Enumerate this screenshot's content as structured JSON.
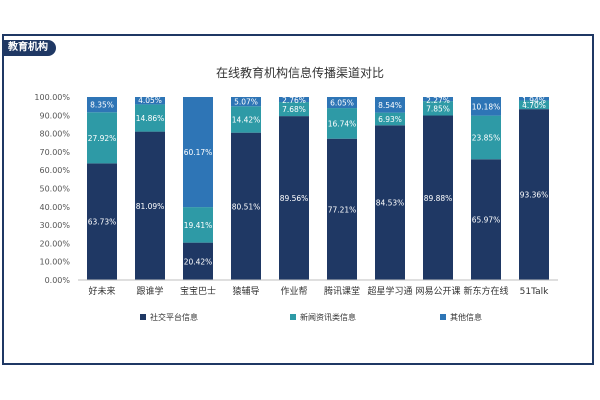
{
  "header": {
    "tag": "教育机构"
  },
  "chart_data": {
    "type": "bar",
    "stacked": true,
    "title": "在线教育机构信息传播渠道对比",
    "categories": [
      "好未来",
      "跟谁学",
      "宝宝巴士",
      "猿辅导",
      "作业帮",
      "腾讯课堂",
      "超星学习通",
      "网易公开课",
      "新东方在线",
      "51Talk"
    ],
    "series": [
      {
        "name": "社交平台信息",
        "color": "#1f3864",
        "values": [
          63.73,
          81.09,
          20.42,
          80.51,
          89.56,
          77.21,
          84.53,
          89.88,
          65.97,
          93.36
        ],
        "labels": [
          "63.73%",
          "81.09%",
          "20.42%",
          "80.51%",
          "89.56%",
          "77.21%",
          "84.53%",
          "89.88%",
          "65.97%",
          "93.36%"
        ]
      },
      {
        "name": "新闻资讯类信息",
        "color": "#2e9aa6",
        "values": [
          27.92,
          14.86,
          19.41,
          14.42,
          7.68,
          16.74,
          6.93,
          7.85,
          23.85,
          4.7
        ],
        "labels": [
          "27.92%",
          "14.86%",
          "19.41%",
          "14.42%",
          "7.68%",
          "16.74%",
          "6.93%",
          "7.85%",
          "23.85%",
          "4.70%"
        ]
      },
      {
        "name": "其他信息",
        "color": "#2e75b6",
        "values": [
          8.35,
          4.05,
          60.17,
          5.07,
          2.76,
          6.05,
          8.54,
          2.27,
          10.18,
          1.94
        ],
        "labels": [
          "8.35%",
          "4.05%",
          "60.17%",
          "5.07%",
          "2.76%",
          "6.05%",
          "8.54%",
          "2.27%",
          "10.18%",
          "1.94%"
        ]
      }
    ],
    "y_ticks": [
      "0.00%",
      "10.00%",
      "20.00%",
      "30.00%",
      "40.00%",
      "50.00%",
      "60.00%",
      "70.00%",
      "80.00%",
      "90.00%",
      "100.00%"
    ],
    "ylim": [
      0,
      100
    ],
    "grid": false,
    "legend_position": "bottom"
  }
}
